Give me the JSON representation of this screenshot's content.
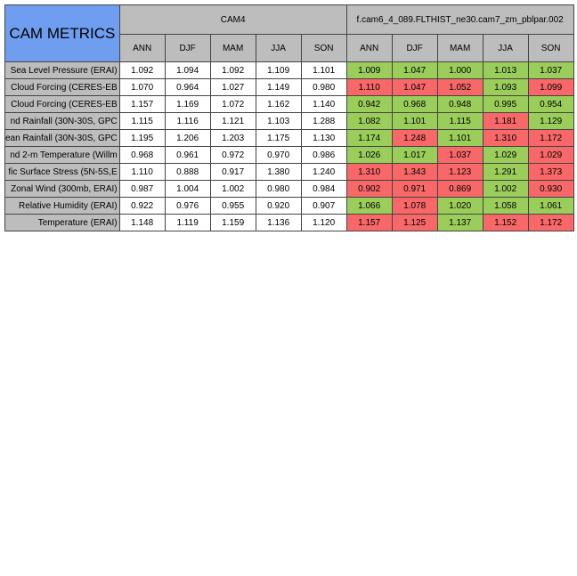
{
  "title": "CAM METRICS",
  "groups": [
    {
      "label": "CAM4"
    },
    {
      "label": "f.cam6_4_089.FLTHIST_ne30.cam7_zm_pblpar.002"
    }
  ],
  "seasons": [
    "ANN",
    "DJF",
    "MAM",
    "JJA",
    "SON"
  ],
  "colors": {
    "header_gray": "#bdbdbd",
    "title_blue": "#6f9ef0",
    "better_green": "#9acd5a",
    "worse_red": "#f86868"
  },
  "rows": [
    {
      "metric": "Sea Level Pressure (ERAI)",
      "cam4": [
        "1.092",
        "1.094",
        "1.092",
        "1.109",
        "1.101"
      ],
      "test": [
        "1.009",
        "1.047",
        "1.000",
        "1.013",
        "1.037"
      ],
      "test_status": [
        "green",
        "green",
        "green",
        "green",
        "green"
      ]
    },
    {
      "metric": "Cloud Forcing (CERES-EB",
      "cam4": [
        "1.070",
        "0.964",
        "1.027",
        "1.149",
        "0.980"
      ],
      "test": [
        "1.110",
        "1.047",
        "1.052",
        "1.093",
        "1.099"
      ],
      "test_status": [
        "red",
        "red",
        "red",
        "green",
        "red"
      ]
    },
    {
      "metric": "Cloud Forcing (CERES-EB",
      "cam4": [
        "1.157",
        "1.169",
        "1.072",
        "1.162",
        "1.140"
      ],
      "test": [
        "0.942",
        "0.968",
        "0.948",
        "0.995",
        "0.954"
      ],
      "test_status": [
        "green",
        "green",
        "green",
        "green",
        "green"
      ]
    },
    {
      "metric": "nd Rainfall (30N-30S, GPC",
      "cam4": [
        "1.115",
        "1.116",
        "1.121",
        "1.103",
        "1.288"
      ],
      "test": [
        "1.082",
        "1.101",
        "1.115",
        "1.181",
        "1.129"
      ],
      "test_status": [
        "green",
        "green",
        "green",
        "red",
        "green"
      ]
    },
    {
      "metric": "ean Rainfall (30N-30S, GPC",
      "cam4": [
        "1.195",
        "1.206",
        "1.203",
        "1.175",
        "1.130"
      ],
      "test": [
        "1.174",
        "1.248",
        "1.101",
        "1.310",
        "1.172"
      ],
      "test_status": [
        "green",
        "red",
        "green",
        "red",
        "red"
      ]
    },
    {
      "metric": "nd 2-m Temperature (Willm",
      "cam4": [
        "0.968",
        "0.961",
        "0.972",
        "0.970",
        "0.986"
      ],
      "test": [
        "1.026",
        "1.017",
        "1.037",
        "1.029",
        "1.029"
      ],
      "test_status": [
        "green",
        "green",
        "red",
        "green",
        "red"
      ]
    },
    {
      "metric": "fic Surface Stress (5N-5S,E",
      "cam4": [
        "1.110",
        "0.888",
        "0.917",
        "1.380",
        "1.240"
      ],
      "test": [
        "1.310",
        "1.343",
        "1.123",
        "1.291",
        "1.373"
      ],
      "test_status": [
        "red",
        "red",
        "red",
        "green",
        "red"
      ]
    },
    {
      "metric": "Zonal Wind (300mb, ERAI)",
      "cam4": [
        "0.987",
        "1.004",
        "1.002",
        "0.980",
        "0.984"
      ],
      "test": [
        "0.902",
        "0.971",
        "0.869",
        "1.002",
        "0.930"
      ],
      "test_status": [
        "red",
        "red",
        "red",
        "green",
        "red"
      ]
    },
    {
      "metric": "Relative Humidity (ERAI)",
      "cam4": [
        "0.922",
        "0.976",
        "0.955",
        "0.920",
        "0.907"
      ],
      "test": [
        "1.066",
        "1.078",
        "1.020",
        "1.058",
        "1.061"
      ],
      "test_status": [
        "green",
        "red",
        "green",
        "green",
        "green"
      ]
    },
    {
      "metric": "Temperature (ERAI)",
      "cam4": [
        "1.148",
        "1.119",
        "1.159",
        "1.136",
        "1.120"
      ],
      "test": [
        "1.157",
        "1.125",
        "1.137",
        "1.152",
        "1.172"
      ],
      "test_status": [
        "red",
        "red",
        "green",
        "red",
        "red"
      ]
    }
  ]
}
